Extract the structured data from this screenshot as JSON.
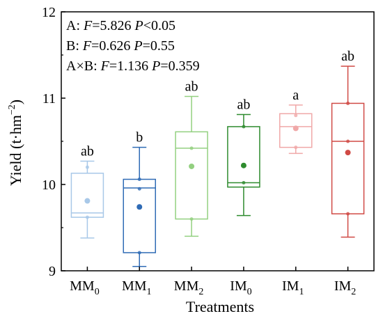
{
  "chart_data": {
    "type": "box",
    "xlabel": "Treatments",
    "ylabel": "Yield (t·hm",
    "ylabel_sup": "−2",
    "ylabel_close": ")",
    "ylim": [
      9,
      12
    ],
    "yticks": [
      9,
      10,
      11,
      12
    ],
    "stats": [
      {
        "label": "A: ",
        "f_text": "F",
        "f_eq": "=5.826 ",
        "p_text": "P",
        "p_eq": "<0.05"
      },
      {
        "label": "B: ",
        "f_text": "F",
        "f_eq": "=0.626 ",
        "p_text": "P",
        "p_eq": "=0.55"
      },
      {
        "label": "A×B: ",
        "f_text": "F",
        "f_eq": "=1.136 ",
        "p_text": "P",
        "p_eq": "=0.359"
      }
    ],
    "groups": [
      {
        "label": "MM",
        "sub": "0",
        "color": "#a8c8e8",
        "min": 9.38,
        "q1": 9.62,
        "median": 9.67,
        "q3": 10.13,
        "max": 10.27,
        "mean": 9.81,
        "points": [
          9.62,
          10.2
        ],
        "letter": "ab"
      },
      {
        "label": "MM",
        "sub": "1",
        "color": "#2f6bb5",
        "min": 9.05,
        "q1": 9.21,
        "median": 9.96,
        "q3": 10.06,
        "max": 10.43,
        "mean": 9.74,
        "points": [
          9.21,
          9.95,
          10.06
        ],
        "letter": "b"
      },
      {
        "label": "MM",
        "sub": "2",
        "color": "#93d080",
        "min": 9.4,
        "q1": 9.6,
        "median": 10.42,
        "q3": 10.61,
        "max": 11.02,
        "mean": 10.21,
        "points": [
          9.6,
          10.42
        ],
        "letter": "ab"
      },
      {
        "label": "IM",
        "sub": "0",
        "color": "#2e8b2e",
        "min": 9.64,
        "q1": 9.97,
        "median": 10.02,
        "q3": 10.67,
        "max": 10.81,
        "mean": 10.22,
        "points": [
          10.02,
          10.67
        ],
        "letter": "ab"
      },
      {
        "label": "IM",
        "sub": "1",
        "color": "#f0a8a8",
        "min": 10.36,
        "q1": 10.43,
        "median": 10.67,
        "q3": 10.82,
        "max": 10.92,
        "mean": 10.65,
        "points": [
          10.43,
          10.8
        ],
        "letter": "a"
      },
      {
        "label": "IM",
        "sub": "2",
        "color": "#d04a45",
        "min": 9.39,
        "q1": 9.66,
        "median": 10.5,
        "q3": 10.94,
        "max": 11.37,
        "mean": 10.37,
        "points": [
          9.66,
          10.5,
          10.94
        ],
        "letter": "ab"
      }
    ]
  }
}
